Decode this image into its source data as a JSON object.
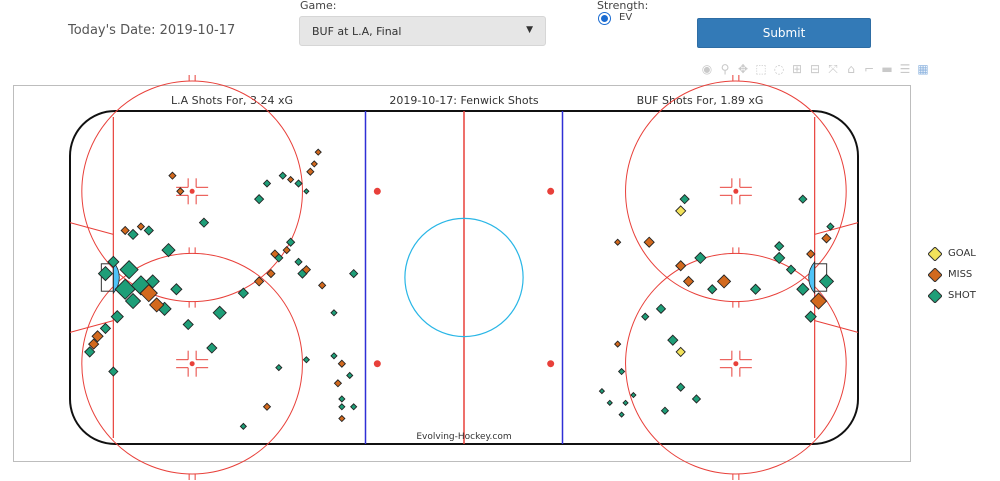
{
  "header": {
    "date_label": "Today's Date: 2019-10-17",
    "game_label": "Game:",
    "game_value": "BUF at L.A, Final",
    "strength_label": "Strength:",
    "strength_option": "EV",
    "submit_label": "Submit"
  },
  "modebar_icons": [
    "camera-icon",
    "zoom-icon",
    "pan-icon",
    "box-select-icon",
    "lasso-icon",
    "zoom-in-icon",
    "zoom-out-icon",
    "autoscale-icon",
    "reset-axes-icon",
    "spike-lines-icon",
    "hover-closest-icon",
    "hover-compare-icon",
    "plotly-logo-icon"
  ],
  "chart_data": {
    "type": "scatter",
    "title": "2019-10-17:  Fenwick Shots",
    "left_title": "L.A Shots For, 3.24 xG",
    "right_title": "BUF Shots For, 1.89 xG",
    "watermark": "Evolving-Hockey.com",
    "colors": {
      "GOAL": "#f2e25a",
      "MISS": "#d2691e",
      "SHOT": "#1e9e78",
      "red_line": "#e8403a",
      "blue_line": "#2f2fd6",
      "faceoff": "#29b6e6",
      "crease": "#4fc3f7"
    },
    "x_range": [
      -100,
      100
    ],
    "y_range": [
      -42.5,
      42.5
    ],
    "legend": [
      "GOAL",
      "MISS",
      "SHOT"
    ],
    "legend_position": "right",
    "shots": [
      {
        "x": -91,
        "y": 1,
        "r": 1.4,
        "type": "SHOT"
      },
      {
        "x": -89,
        "y": 4,
        "r": 1.1,
        "type": "SHOT"
      },
      {
        "x": -86,
        "y": -3,
        "r": 2.0,
        "type": "SHOT"
      },
      {
        "x": -85,
        "y": 2,
        "r": 1.8,
        "type": "SHOT"
      },
      {
        "x": -84,
        "y": -6,
        "r": 1.5,
        "type": "SHOT"
      },
      {
        "x": -82,
        "y": -2,
        "r": 1.9,
        "type": "SHOT"
      },
      {
        "x": -80,
        "y": -4,
        "r": 1.7,
        "type": "MISS"
      },
      {
        "x": -79,
        "y": -1,
        "r": 1.3,
        "type": "SHOT"
      },
      {
        "x": -78,
        "y": -7,
        "r": 1.4,
        "type": "MISS"
      },
      {
        "x": -88,
        "y": -10,
        "r": 1.2,
        "type": "SHOT"
      },
      {
        "x": -91,
        "y": -13,
        "r": 1.0,
        "type": "SHOT"
      },
      {
        "x": -93,
        "y": -15,
        "r": 1.1,
        "type": "MISS"
      },
      {
        "x": -94,
        "y": -17,
        "r": 1.0,
        "type": "MISS"
      },
      {
        "x": -95,
        "y": -19,
        "r": 1.0,
        "type": "SHOT"
      },
      {
        "x": -89,
        "y": -24,
        "r": 0.9,
        "type": "SHOT"
      },
      {
        "x": -76,
        "y": -8,
        "r": 1.3,
        "type": "SHOT"
      },
      {
        "x": -73,
        "y": -3,
        "r": 1.1,
        "type": "SHOT"
      },
      {
        "x": -70,
        "y": -12,
        "r": 1.0,
        "type": "SHOT"
      },
      {
        "x": -64,
        "y": -18,
        "r": 1.0,
        "type": "SHOT"
      },
      {
        "x": -62,
        "y": -9,
        "r": 1.3,
        "type": "SHOT"
      },
      {
        "x": -56,
        "y": -4,
        "r": 1.0,
        "type": "SHOT"
      },
      {
        "x": -52,
        "y": -1,
        "r": 0.9,
        "type": "MISS"
      },
      {
        "x": -49,
        "y": 1,
        "r": 0.8,
        "type": "MISS"
      },
      {
        "x": -47,
        "y": 5,
        "r": 0.8,
        "type": "SHOT"
      },
      {
        "x": -41,
        "y": 1,
        "r": 0.9,
        "type": "SHOT"
      },
      {
        "x": -40,
        "y": 2,
        "r": 0.8,
        "type": "MISS"
      },
      {
        "x": -36,
        "y": -2,
        "r": 0.7,
        "type": "MISS"
      },
      {
        "x": -33,
        "y": -9,
        "r": 0.6,
        "type": "SHOT"
      },
      {
        "x": -28,
        "y": 1,
        "r": 0.8,
        "type": "SHOT"
      },
      {
        "x": -56,
        "y": -38,
        "r": 0.6,
        "type": "SHOT"
      },
      {
        "x": -50,
        "y": -33,
        "r": 0.7,
        "type": "MISS"
      },
      {
        "x": -47,
        "y": -23,
        "r": 0.6,
        "type": "SHOT"
      },
      {
        "x": -40,
        "y": -21,
        "r": 0.6,
        "type": "SHOT"
      },
      {
        "x": -33,
        "y": -20,
        "r": 0.6,
        "type": "SHOT"
      },
      {
        "x": -31,
        "y": -22,
        "r": 0.7,
        "type": "MISS"
      },
      {
        "x": -29,
        "y": -25,
        "r": 0.6,
        "type": "SHOT"
      },
      {
        "x": -32,
        "y": -27,
        "r": 0.7,
        "type": "MISS"
      },
      {
        "x": -31,
        "y": -31,
        "r": 0.6,
        "type": "SHOT"
      },
      {
        "x": -31,
        "y": -33,
        "r": 0.6,
        "type": "SHOT"
      },
      {
        "x": -28,
        "y": -33,
        "r": 0.6,
        "type": "SHOT"
      },
      {
        "x": -31,
        "y": -36,
        "r": 0.6,
        "type": "MISS"
      },
      {
        "x": -42,
        "y": 4,
        "r": 0.7,
        "type": "SHOT"
      },
      {
        "x": -44,
        "y": 9,
        "r": 0.8,
        "type": "SHOT"
      },
      {
        "x": -45,
        "y": 7,
        "r": 0.7,
        "type": "MISS"
      },
      {
        "x": -48,
        "y": 6,
        "r": 0.8,
        "type": "MISS"
      },
      {
        "x": -52,
        "y": 20,
        "r": 0.9,
        "type": "SHOT"
      },
      {
        "x": -50,
        "y": 24,
        "r": 0.7,
        "type": "SHOT"
      },
      {
        "x": -46,
        "y": 26,
        "r": 0.7,
        "type": "SHOT"
      },
      {
        "x": -44,
        "y": 25,
        "r": 0.6,
        "type": "MISS"
      },
      {
        "x": -42,
        "y": 24,
        "r": 0.7,
        "type": "SHOT"
      },
      {
        "x": -39,
        "y": 27,
        "r": 0.7,
        "type": "MISS"
      },
      {
        "x": -37,
        "y": 32,
        "r": 0.6,
        "type": "MISS"
      },
      {
        "x": -38,
        "y": 29,
        "r": 0.6,
        "type": "MISS"
      },
      {
        "x": -40,
        "y": 22,
        "r": 0.5,
        "type": "SHOT"
      },
      {
        "x": -72,
        "y": 22,
        "r": 0.7,
        "type": "MISS"
      },
      {
        "x": -66,
        "y": 14,
        "r": 0.9,
        "type": "SHOT"
      },
      {
        "x": -74,
        "y": 26,
        "r": 0.7,
        "type": "MISS"
      },
      {
        "x": -80,
        "y": 12,
        "r": 0.9,
        "type": "SHOT"
      },
      {
        "x": -84,
        "y": 11,
        "r": 1.0,
        "type": "SHOT"
      },
      {
        "x": -86,
        "y": 12,
        "r": 0.8,
        "type": "MISS"
      },
      {
        "x": -82,
        "y": 13,
        "r": 0.7,
        "type": "MISS"
      },
      {
        "x": -75,
        "y": 7,
        "r": 1.3,
        "type": "SHOT"
      },
      {
        "x": 92,
        "y": -1,
        "r": 1.4,
        "type": "SHOT"
      },
      {
        "x": 90,
        "y": -6,
        "r": 1.6,
        "type": "MISS"
      },
      {
        "x": 88,
        "y": -10,
        "r": 1.1,
        "type": "SHOT"
      },
      {
        "x": 86,
        "y": -3,
        "r": 1.2,
        "type": "SHOT"
      },
      {
        "x": 83,
        "y": 2,
        "r": 0.9,
        "type": "SHOT"
      },
      {
        "x": 80,
        "y": 5,
        "r": 1.1,
        "type": "SHOT"
      },
      {
        "x": 88,
        "y": 6,
        "r": 0.8,
        "type": "MISS"
      },
      {
        "x": 92,
        "y": 10,
        "r": 0.9,
        "type": "MISS"
      },
      {
        "x": 93,
        "y": 13,
        "r": 0.7,
        "type": "SHOT"
      },
      {
        "x": 74,
        "y": -3,
        "r": 1.0,
        "type": "SHOT"
      },
      {
        "x": 66,
        "y": -1,
        "r": 1.3,
        "type": "MISS"
      },
      {
        "x": 60,
        "y": 5,
        "r": 1.1,
        "type": "SHOT"
      },
      {
        "x": 57,
        "y": -1,
        "r": 1.0,
        "type": "MISS"
      },
      {
        "x": 63,
        "y": -3,
        "r": 0.9,
        "type": "SHOT"
      },
      {
        "x": 55,
        "y": 3,
        "r": 1.0,
        "type": "MISS"
      },
      {
        "x": 47,
        "y": 9,
        "r": 1.0,
        "type": "MISS"
      },
      {
        "x": 80,
        "y": 8,
        "r": 0.9,
        "type": "SHOT"
      },
      {
        "x": 50,
        "y": -8,
        "r": 0.9,
        "type": "SHOT"
      },
      {
        "x": 46,
        "y": -10,
        "r": 0.7,
        "type": "SHOT"
      },
      {
        "x": 53,
        "y": -16,
        "r": 1.0,
        "type": "SHOT"
      },
      {
        "x": 55,
        "y": -19,
        "r": 0.9,
        "type": "GOAL"
      },
      {
        "x": 39,
        "y": -17,
        "r": 0.6,
        "type": "MISS"
      },
      {
        "x": 40,
        "y": -24,
        "r": 0.6,
        "type": "SHOT"
      },
      {
        "x": 43,
        "y": -30,
        "r": 0.5,
        "type": "SHOT"
      },
      {
        "x": 41,
        "y": -32,
        "r": 0.5,
        "type": "SHOT"
      },
      {
        "x": 37,
        "y": -32,
        "r": 0.5,
        "type": "SHOT"
      },
      {
        "x": 40,
        "y": -35,
        "r": 0.5,
        "type": "SHOT"
      },
      {
        "x": 35,
        "y": -29,
        "r": 0.5,
        "type": "SHOT"
      },
      {
        "x": 55,
        "y": -28,
        "r": 0.8,
        "type": "SHOT"
      },
      {
        "x": 59,
        "y": -31,
        "r": 0.8,
        "type": "SHOT"
      },
      {
        "x": 51,
        "y": -34,
        "r": 0.7,
        "type": "SHOT"
      },
      {
        "x": 56,
        "y": 20,
        "r": 0.9,
        "type": "SHOT"
      },
      {
        "x": 55,
        "y": 17,
        "r": 1.0,
        "type": "GOAL"
      },
      {
        "x": 39,
        "y": 9,
        "r": 0.6,
        "type": "MISS"
      },
      {
        "x": 86,
        "y": 20,
        "r": 0.8,
        "type": "SHOT"
      }
    ]
  }
}
